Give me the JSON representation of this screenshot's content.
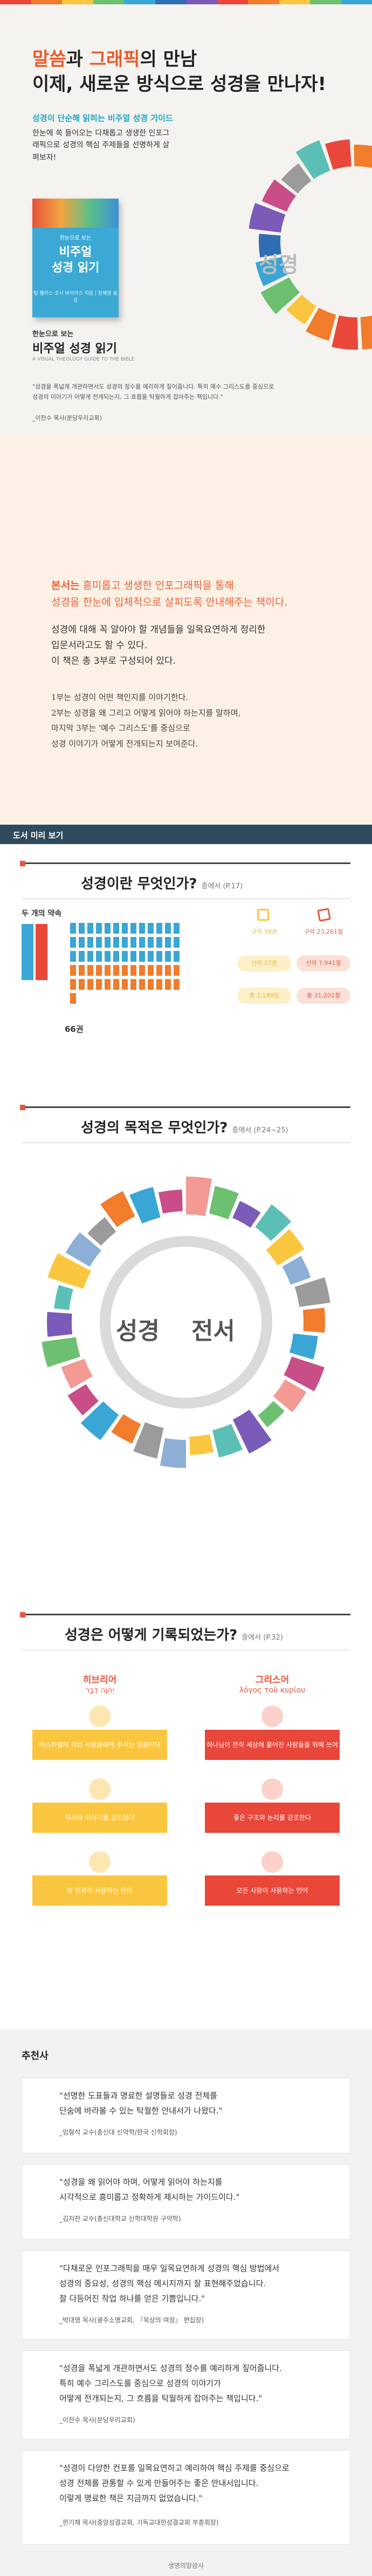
{
  "hero": {
    "title_line1_a": "말씀",
    "title_line1_b": "과 ",
    "title_line1_c": "그래픽",
    "title_line1_d": "의 만남",
    "title_line2": "이제, 새로운 방식으로 성경을 만나자!",
    "subtitle": "성경이 단순해 읽히는 비주얼 성경 가이드",
    "desc": "한눈에 쏙 들어오는 다채롭고 생생한 인포그래픽으로 성경의 핵심 주제들을 선명하게 살펴보자!",
    "book_cover_label": "한눈으로 보는",
    "book_cover_title_1": "비주얼",
    "book_cover_title_2": "성경 읽기",
    "book_small_sub": "한눈으로 보는",
    "book_name": "비주얼 성경 읽기",
    "book_en": "A VISUAL THEOLOGY GUIDE TO THE BIBLE",
    "book_authors": "팀 챌리스·조시 바이어스 지음 | 장혜영 옮김",
    "quote": "\"성경을 폭넓게 개관하면서도 성경의 정수를 예리하게 짚어줍니다. 특히 예수 그리스도를 중심으로 성경의 이야기가 어떻게 전개되는지, 그 흐름을 탁월하게 잡아주는 책입니다.\"",
    "quote_author": "_이찬수 목사(분당우리교회)",
    "big_word": "성경",
    "stripe_colors": [
      "#e8473a",
      "#f07c2c",
      "#fbc63f",
      "#6cc070",
      "#3aa6d6",
      "#2f6db5",
      "#7b5bb8",
      "#e8473a",
      "#f07c2c",
      "#fbc63f",
      "#6cc070",
      "#3aa6d6"
    ]
  },
  "intro": {
    "lead_1": "본서는",
    "lead_1b": " 흥미롭고 생생한 인포그래픽을 통해",
    "lead_2": "성경을 한눈에 입체적으로 살피도록 안내해주는 책이다.",
    "body_1": "성경에 대해 꼭 알아야 할 개념들을 일목요연하게 정리한",
    "body_2": "입문서라고도 할 수 있다.",
    "body_3": "이 책은 총 3부로 구성되어 있다.",
    "part_1": "1부는 성경이 어떤 책인지를 이야기한다.",
    "part_2": "2부는 성경을 왜 그리고 어떻게 읽어야 하는지를 말하며,",
    "part_3": "마지막 3부는 '예수 그리스도'를 중심으로",
    "part_4": "성경 이야기가 어떻게 전개되는지 보여준다."
  },
  "preview": {
    "band_title": "도서 미리 보기"
  },
  "section1": {
    "title": "성경이란 무엇인가?",
    "from": "중에서 (P.17)",
    "promise_label": "두 개의 약속",
    "count": "66권",
    "stats": [
      {
        "label": "구약 39권",
        "color": "#fbc63f"
      },
      {
        "label": "구약 23,261절",
        "color": "#fbc63f"
      },
      {
        "label": "신약 27권",
        "color": "#fbc63f"
      },
      {
        "label": "신약 7,941절",
        "color": "#fbc63f"
      },
      {
        "label": "총 1,189장",
        "color": "#fbc63f"
      },
      {
        "label": "총 31,202절",
        "color": "#fbc63f"
      }
    ]
  },
  "section2": {
    "title": "성경의 목적은 무엇인가?",
    "from": "중에서 (P.24~25)",
    "word_left": "성경",
    "word_right": "전서"
  },
  "section3": {
    "title": "성경은 어떻게 기록되었는가?",
    "from": "중에서 (P.32)",
    "left_head": "히브리어",
    "left_sub": "יְהוָה דְּבַר",
    "right_head": "그리스어",
    "right_sub": "λόγος τοῦ κυρίου",
    "left_cards": [
      "이스라엘의 히브 사람들에게 주시는 말씀이다",
      "역사와 이야기를 강조한다",
      "한 민족이 사용하는 언어"
    ],
    "right_cards": [
      "하나님이 전히 세상에 흩어진 사람들을 위해 쓰여졌다",
      "좋은 구조와 논리를 강조한다",
      "모든 사람이 사용하는 언어"
    ]
  },
  "recommend": {
    "title": "추천사",
    "items": [
      {
        "text_1": "\"선명한 도표들과 명료한 설명들로 성경 전체를",
        "text_2": "단숨에 바라볼 수 있는 탁월한 안내서가 나왔다.\"",
        "text_3": "",
        "author": "_임형석 교수(총신대 신약학/한국 신학회장)"
      },
      {
        "text_1": "\"성경을 왜 읽어야 하며, 어떻게 읽어야 하는지를",
        "text_2": "시각적으로 흥미롭고 정확하게 제시하는 가이드이다.\"",
        "text_3": "",
        "author": "_김지찬 교수(총신대학교 신학대학원 구약학)"
      },
      {
        "text_1": "\"다채로운 인포그래픽을 매우 일목요연하게 성경의 핵심 방법에서",
        "text_2": "성경의 중요성, 성경의 핵심 메시지까지 잘 표현해주었습니다.",
        "text_3": "잘 다듬어진 작업 하나를 얻은 기쁨입니다.\"",
        "author": "_박대영 목사(광주소명교회, 『묵상의 여정』 편집장)"
      },
      {
        "text_1": "\"성경을 폭넓게 개관하면서도 성경의 정수를 예리하게 짚어줍니다.",
        "text_2": "특히 예수 그리스도를 중심으로 성경의 이야기가",
        "text_3": "어떻게 전개되는지, 그 흐름을 탁월하게 잡아주는 책입니다.\"",
        "author": "_이찬수 목사(분당우리교회)"
      },
      {
        "text_1": "\"성경이 다양한 컨포를 일목요연하고 예리하여 핵심 주제를 중심으로",
        "text_2": "성경 전체를 관통할 수 있게 만들어주는 좋은 안내서입니다.",
        "text_3": "이렇게 명료한 책은 지금까지 없었습니다.\"",
        "author": "_한기채 목사(중앙성결교회, 기독교대한성결교회 부총회장)"
      }
    ]
  },
  "footer": {
    "logo": "생명의말씀사"
  }
}
